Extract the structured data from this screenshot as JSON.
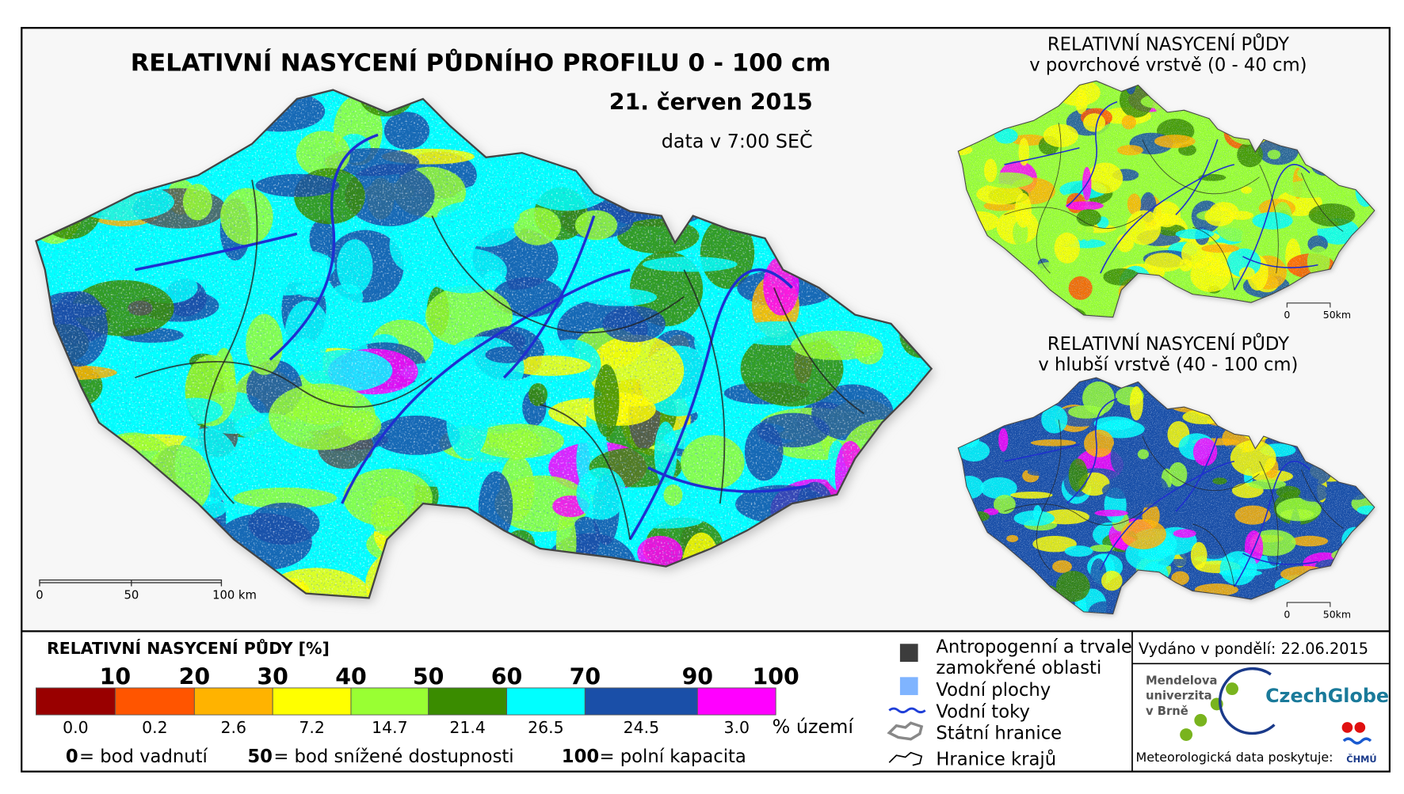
{
  "title": "RELATIVNÍ NASYCENÍ PŮDNÍHO PROFILU 0 - 100 cm",
  "date": "21. červen 2015",
  "data_time": "data v 7:00 SEČ",
  "main_scale": [
    "0",
    "50",
    "100 km"
  ],
  "insets": [
    {
      "title": [
        "RELATIVNÍ NASYCENÍ PŮDY",
        "v povrchové vrstvě (0 - 40 cm)"
      ],
      "scale": [
        "0",
        "50km"
      ]
    },
    {
      "title": [
        "RELATIVNÍ NASYCENÍ PŮDY",
        "v hlubší vrstvě (40 - 100 cm)"
      ],
      "scale": [
        "0",
        "50km"
      ]
    }
  ],
  "legend": {
    "title": "RELATIVNÍ NASYCENÍ PŮDY [%]",
    "thresholds": [
      10,
      20,
      30,
      40,
      50,
      60,
      70,
      90,
      100
    ],
    "colors": [
      "#990000",
      "#ff5500",
      "#ffb300",
      "#ffff00",
      "#99ff33",
      "#3a8c00",
      "#00ffff",
      "#1a4fa8",
      "#ff00ff"
    ],
    "shares": [
      "0.0",
      "0.2",
      "2.6",
      "7.2",
      "14.7",
      "21.4",
      "26.5",
      "24.5",
      "3.0"
    ],
    "shares_unit": "% území",
    "notes": [
      {
        "value": "0",
        "text": "= bod vadnutí"
      },
      {
        "value": "50",
        "text": "= bod snížené dostupnosti"
      },
      {
        "value": "100",
        "text": "= polní kapacita"
      }
    ]
  },
  "symbols": [
    "Antropogenní a trvale",
    "zamokřené oblasti",
    "Vodní plochy",
    "Vodní toky",
    "Státní hranice",
    "Hranice krajů"
  ],
  "issued": "Vydáno v pondělí: 22.06.2015",
  "logos": {
    "mendelu": [
      "Mendelova",
      "univerzita",
      "v Brně"
    ],
    "czechglobe": "CzechGlobe",
    "provider": "Meteorologická data poskytuje:",
    "chmu": "ČHMÚ"
  }
}
